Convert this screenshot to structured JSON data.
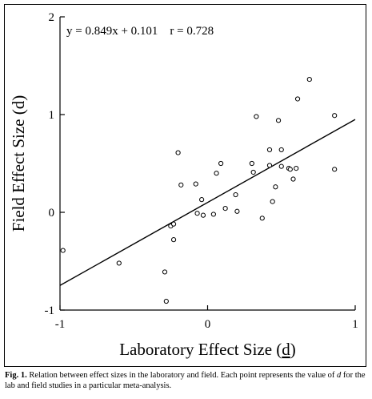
{
  "chart_data": {
    "type": "scatter",
    "xlabel_text": "Laboratory Effect Size (",
    "xlabel_var": "d",
    "xlabel_close": ")",
    "ylabel": "Field Effect Size (d)",
    "annotation": "y = 0.849x + 0.101    r = 0.728",
    "xlim": [
      -1,
      1
    ],
    "ylim": [
      -1,
      2
    ],
    "x_ticks": [
      -1,
      0,
      1
    ],
    "x_tick_labels": [
      "-1",
      "0",
      "1"
    ],
    "y_ticks": [
      -1,
      0,
      1,
      2
    ],
    "y_tick_labels": [
      "-1",
      "0",
      "1",
      "2"
    ],
    "grid": false,
    "regression": {
      "slope": 0.849,
      "intercept": 0.101
    },
    "points": [
      {
        "x": -0.98,
        "y": -0.39
      },
      {
        "x": -0.6,
        "y": -0.52
      },
      {
        "x": -0.29,
        "y": -0.61
      },
      {
        "x": -0.28,
        "y": -0.91
      },
      {
        "x": -0.25,
        "y": -0.14
      },
      {
        "x": -0.23,
        "y": -0.12
      },
      {
        "x": -0.23,
        "y": -0.28
      },
      {
        "x": -0.2,
        "y": 0.61
      },
      {
        "x": -0.18,
        "y": 0.28
      },
      {
        "x": -0.08,
        "y": 0.29
      },
      {
        "x": -0.07,
        "y": -0.01
      },
      {
        "x": -0.04,
        "y": 0.13
      },
      {
        "x": -0.03,
        "y": -0.03
      },
      {
        "x": 0.04,
        "y": -0.02
      },
      {
        "x": 0.06,
        "y": 0.4
      },
      {
        "x": 0.09,
        "y": 0.5
      },
      {
        "x": 0.12,
        "y": 0.04
      },
      {
        "x": 0.19,
        "y": 0.18
      },
      {
        "x": 0.2,
        "y": 0.01
      },
      {
        "x": 0.3,
        "y": 0.5
      },
      {
        "x": 0.31,
        "y": 0.41
      },
      {
        "x": 0.33,
        "y": 0.98
      },
      {
        "x": 0.37,
        "y": -0.06
      },
      {
        "x": 0.42,
        "y": 0.64
      },
      {
        "x": 0.42,
        "y": 0.48
      },
      {
        "x": 0.44,
        "y": 0.11
      },
      {
        "x": 0.46,
        "y": 0.26
      },
      {
        "x": 0.48,
        "y": 0.94
      },
      {
        "x": 0.5,
        "y": 0.64
      },
      {
        "x": 0.5,
        "y": 0.47
      },
      {
        "x": 0.55,
        "y": 0.45
      },
      {
        "x": 0.56,
        "y": 0.44
      },
      {
        "x": 0.58,
        "y": 0.34
      },
      {
        "x": 0.6,
        "y": 0.45
      },
      {
        "x": 0.61,
        "y": 1.16
      },
      {
        "x": 0.69,
        "y": 1.36
      },
      {
        "x": 0.86,
        "y": 0.99
      },
      {
        "x": 0.86,
        "y": 0.44
      }
    ]
  },
  "caption": {
    "label": "Fig. 1.",
    "text_before": " Relation between effect sizes in the laboratory and field. Each point represents the value of ",
    "italic_var": "d",
    "text_after": " for the lab and field studies in a particular meta-analysis."
  }
}
